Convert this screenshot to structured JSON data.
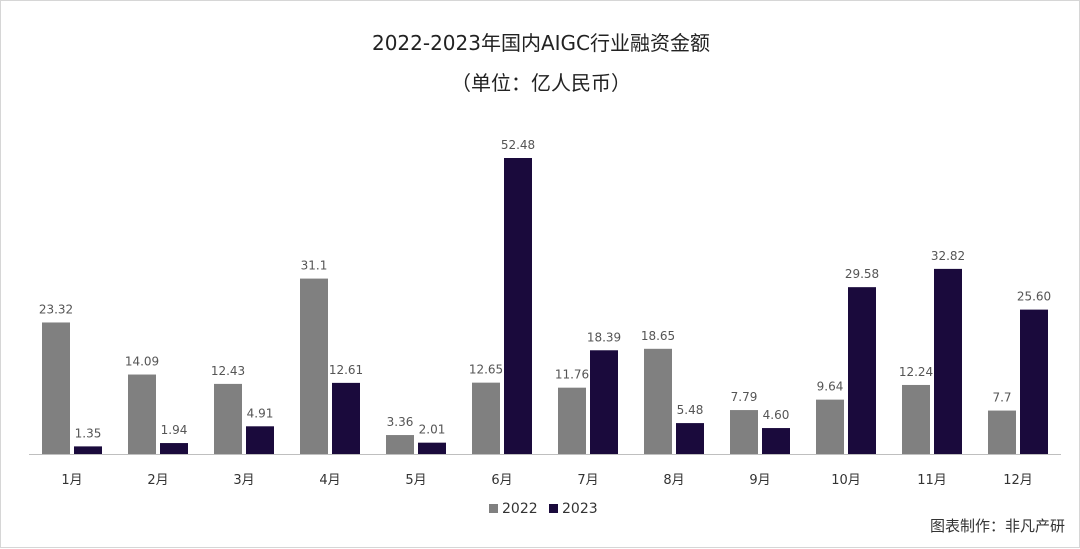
{
  "chart_data": {
    "type": "bar",
    "title": "2022-2023年国内AIGC行业融资金额",
    "subtitle": "（单位：亿人民币）",
    "categories": [
      "1月",
      "2月",
      "3月",
      "4月",
      "5月",
      "6月",
      "7月",
      "8月",
      "9月",
      "10月",
      "11月",
      "12月"
    ],
    "series": [
      {
        "name": "2022",
        "color": "#808080",
        "values": [
          23.32,
          14.09,
          12.43,
          31.1,
          3.36,
          12.65,
          11.76,
          18.65,
          7.79,
          9.64,
          12.24,
          7.7
        ],
        "labels": [
          "23.32",
          "14.09",
          "12.43",
          "31.1",
          "3.36",
          "12.65",
          "11.76",
          "18.65",
          "7.79",
          "9.64",
          "12.24",
          "7.7"
        ]
      },
      {
        "name": "2023",
        "color": "#1a0a3c",
        "values": [
          1.35,
          1.94,
          4.91,
          12.61,
          2.01,
          52.48,
          18.39,
          5.48,
          4.6,
          29.58,
          32.82,
          25.6
        ],
        "labels": [
          "1.35",
          "1.94",
          "4.91",
          "12.61",
          "2.01",
          "52.48",
          "18.39",
          "5.48",
          "4.60",
          "29.58",
          "32.82",
          "25.60"
        ]
      }
    ],
    "ylim": [
      0,
      52.48
    ],
    "legend_position": "bottom-center",
    "grid": false
  },
  "source": "图表制作：非凡产研"
}
